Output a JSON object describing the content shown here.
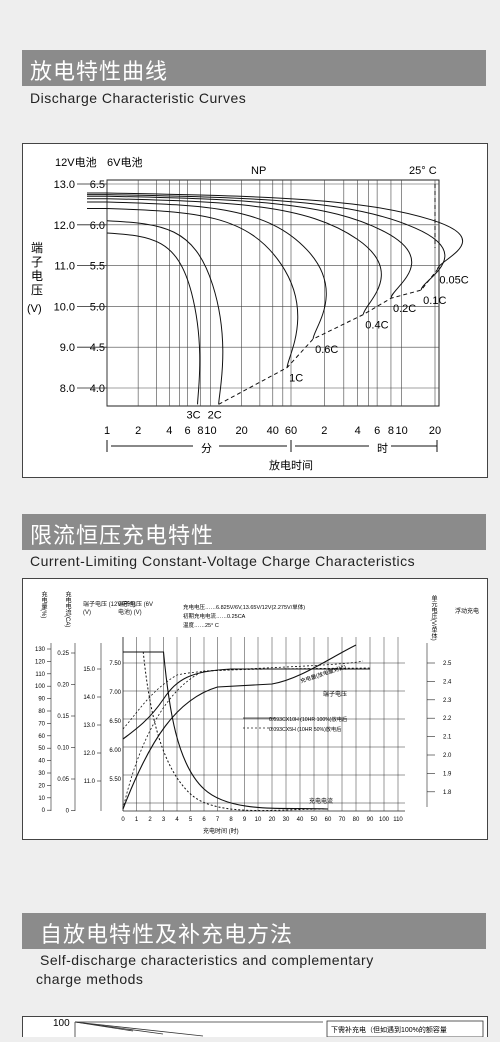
{
  "section1": {
    "title": "放电特性曲线",
    "subtitle": "Discharge Characteristic Curves",
    "chart_data": {
      "type": "line",
      "header_12v": "12V电池",
      "header_6v": "6V电池",
      "np_label": "NP",
      "temp_label": "25° C",
      "ylabel": "端子电压",
      "yunit": "(V)",
      "y12_ticks": [
        "13.0",
        "12.0",
        "11.0",
        "10.0",
        "9.0",
        "8.0"
      ],
      "y6_ticks": [
        "6.5",
        "6.0",
        "5.5",
        "5.0",
        "4.5",
        "4.0"
      ],
      "x_ticks_min": [
        "1",
        "2",
        "4",
        "6",
        "8",
        "10",
        "20",
        "40",
        "60"
      ],
      "x_ticks_hr": [
        "2",
        "4",
        "6",
        "8",
        "10",
        "20"
      ],
      "unit_min": "分",
      "unit_hr": "时",
      "xlabel": "放电时间",
      "series": [
        {
          "name": "3C",
          "end": "7.5",
          "end_v": 3.8
        },
        {
          "name": "2C",
          "end": "12",
          "end_v": 3.8
        },
        {
          "name": "1C",
          "end": "55",
          "end_v": 4.25
        },
        {
          "name": "0.6C",
          "end": "95",
          "end_v": 4.6
        },
        {
          "name": "0.4C",
          "end": "4.5 h",
          "end_v": 4.9
        },
        {
          "name": "0.2C",
          "end": "8 h",
          "end_v": 5.1
        },
        {
          "name": "0.1C",
          "end": "15 h",
          "end_v": 5.2
        },
        {
          "name": "0.05C",
          "end": "21 h",
          "end_v": 5.45
        }
      ]
    }
  },
  "section2": {
    "title": "限流恒压充电特性",
    "subtitle": "Current-Limiting Constant-Voltage Charge Characteristics",
    "chart_data": {
      "type": "line",
      "col_chargeqty": "充电量(%)",
      "col_current": "充电电流(CA)",
      "col_12v": "端子电压 (12V电池) (V)",
      "col_6v": "端子电压 (6V电池) (V)",
      "col_float": "浮动充电",
      "col_cellv": "单元电压(V/单体)",
      "note_voltage": "充电电压……6.825V/6V,13.65V/12V(2.275V/单体)",
      "note_current": "初期充电电流……0.25CA",
      "note_temp": "温度……25° C",
      "yq_ticks": [
        "130",
        "120",
        "110",
        "100",
        "90",
        "80",
        "70",
        "60",
        "50",
        "40",
        "30",
        "20",
        "10",
        "0"
      ],
      "yc_ticks": [
        "0.25",
        "0.20",
        "0.15",
        "0.10",
        "0.05",
        "0"
      ],
      "y12_ticks": [
        "15.0",
        "14.0",
        "13.0",
        "12.0",
        "11.0"
      ],
      "y6_ticks": [
        "7.50",
        "7.00",
        "6.50",
        "6.00",
        "5.50"
      ],
      "ycell_ticks": [
        "2.5",
        "2.4",
        "2.3",
        "2.2",
        "2.1",
        "2.0",
        "1.9",
        "1.8"
      ],
      "x_ticks": [
        "0",
        "1",
        "2",
        "3",
        "4",
        "5",
        "6",
        "7",
        "8",
        "9",
        "10",
        "20",
        "30",
        "40",
        "50",
        "60",
        "70",
        "80",
        "90",
        "100",
        "110"
      ],
      "xlabel": "充电时间 (时)",
      "label_qty": "充电量(放电量对比)",
      "label_volt": "端子电压",
      "label_curr": "充电电流",
      "legend": [
        "0.093CX10H (10HR 100%)放电后",
        "0.093CX5H (10HR 50%)放电后"
      ]
    }
  },
  "section3": {
    "title": "自放电特性及补充电方法",
    "subtitle1": "Self-discharge characteristics and complementary",
    "subtitle2": "charge methods",
    "y_top": "100",
    "side_text": "下需补充电（但如遇到100%的额容量"
  }
}
